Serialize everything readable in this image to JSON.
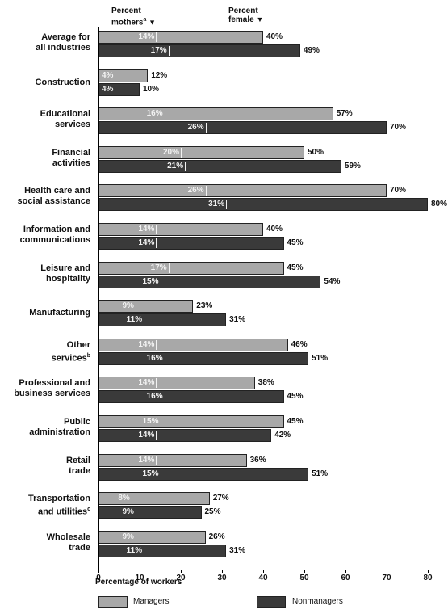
{
  "header": {
    "mothers_line1": "Percent",
    "mothers_line2": "mothers",
    "mothers_sup": "a",
    "female_line1": "Percent",
    "female_line2": "female",
    "arrow": "▼"
  },
  "legend": {
    "managers": "Managers",
    "nonmanagers": "Nonmanagers"
  },
  "colors": {
    "managers": "#a8a8a8",
    "nonmanagers": "#3a3a3a"
  },
  "chart_data": {
    "type": "bar",
    "orientation": "horizontal",
    "xlabel": "Percentage of workers",
    "xlim": [
      0,
      80
    ],
    "xticks": [
      0,
      10,
      20,
      30,
      40,
      50,
      60,
      70,
      80
    ],
    "grid": false,
    "legend_position": "bottom",
    "categories": [
      {
        "lines": [
          "Average for",
          "all industries"
        ],
        "sup": ""
      },
      {
        "lines": [
          "Construction"
        ],
        "sup": ""
      },
      {
        "lines": [
          "Educational",
          "services"
        ],
        "sup": ""
      },
      {
        "lines": [
          "Financial",
          "activities"
        ],
        "sup": ""
      },
      {
        "lines": [
          "Health care and",
          "social assistance"
        ],
        "sup": ""
      },
      {
        "lines": [
          "Information and",
          "communications"
        ],
        "sup": ""
      },
      {
        "lines": [
          "Leisure and",
          "hospitality"
        ],
        "sup": ""
      },
      {
        "lines": [
          "Manufacturing"
        ],
        "sup": ""
      },
      {
        "lines": [
          "Other",
          "services"
        ],
        "sup": "b"
      },
      {
        "lines": [
          "Professional and",
          "business services"
        ],
        "sup": ""
      },
      {
        "lines": [
          "Public",
          "administration"
        ],
        "sup": ""
      },
      {
        "lines": [
          "Retail",
          "trade"
        ],
        "sup": ""
      },
      {
        "lines": [
          "Transportation",
          "and utilities"
        ],
        "sup": "c"
      },
      {
        "lines": [
          "Wholesale",
          "trade"
        ],
        "sup": ""
      }
    ],
    "series": [
      {
        "name": "Managers",
        "percent_female": [
          40,
          12,
          57,
          50,
          70,
          40,
          45,
          23,
          46,
          38,
          45,
          36,
          27,
          26
        ],
        "percent_mothers": [
          14,
          4,
          16,
          20,
          26,
          14,
          17,
          9,
          14,
          14,
          15,
          14,
          8,
          9
        ]
      },
      {
        "name": "Nonmanagers",
        "percent_female": [
          49,
          10,
          70,
          59,
          80,
          45,
          54,
          31,
          51,
          45,
          42,
          51,
          25,
          31
        ],
        "percent_mothers": [
          17,
          4,
          26,
          21,
          31,
          14,
          15,
          11,
          16,
          16,
          14,
          15,
          9,
          11
        ]
      }
    ]
  }
}
